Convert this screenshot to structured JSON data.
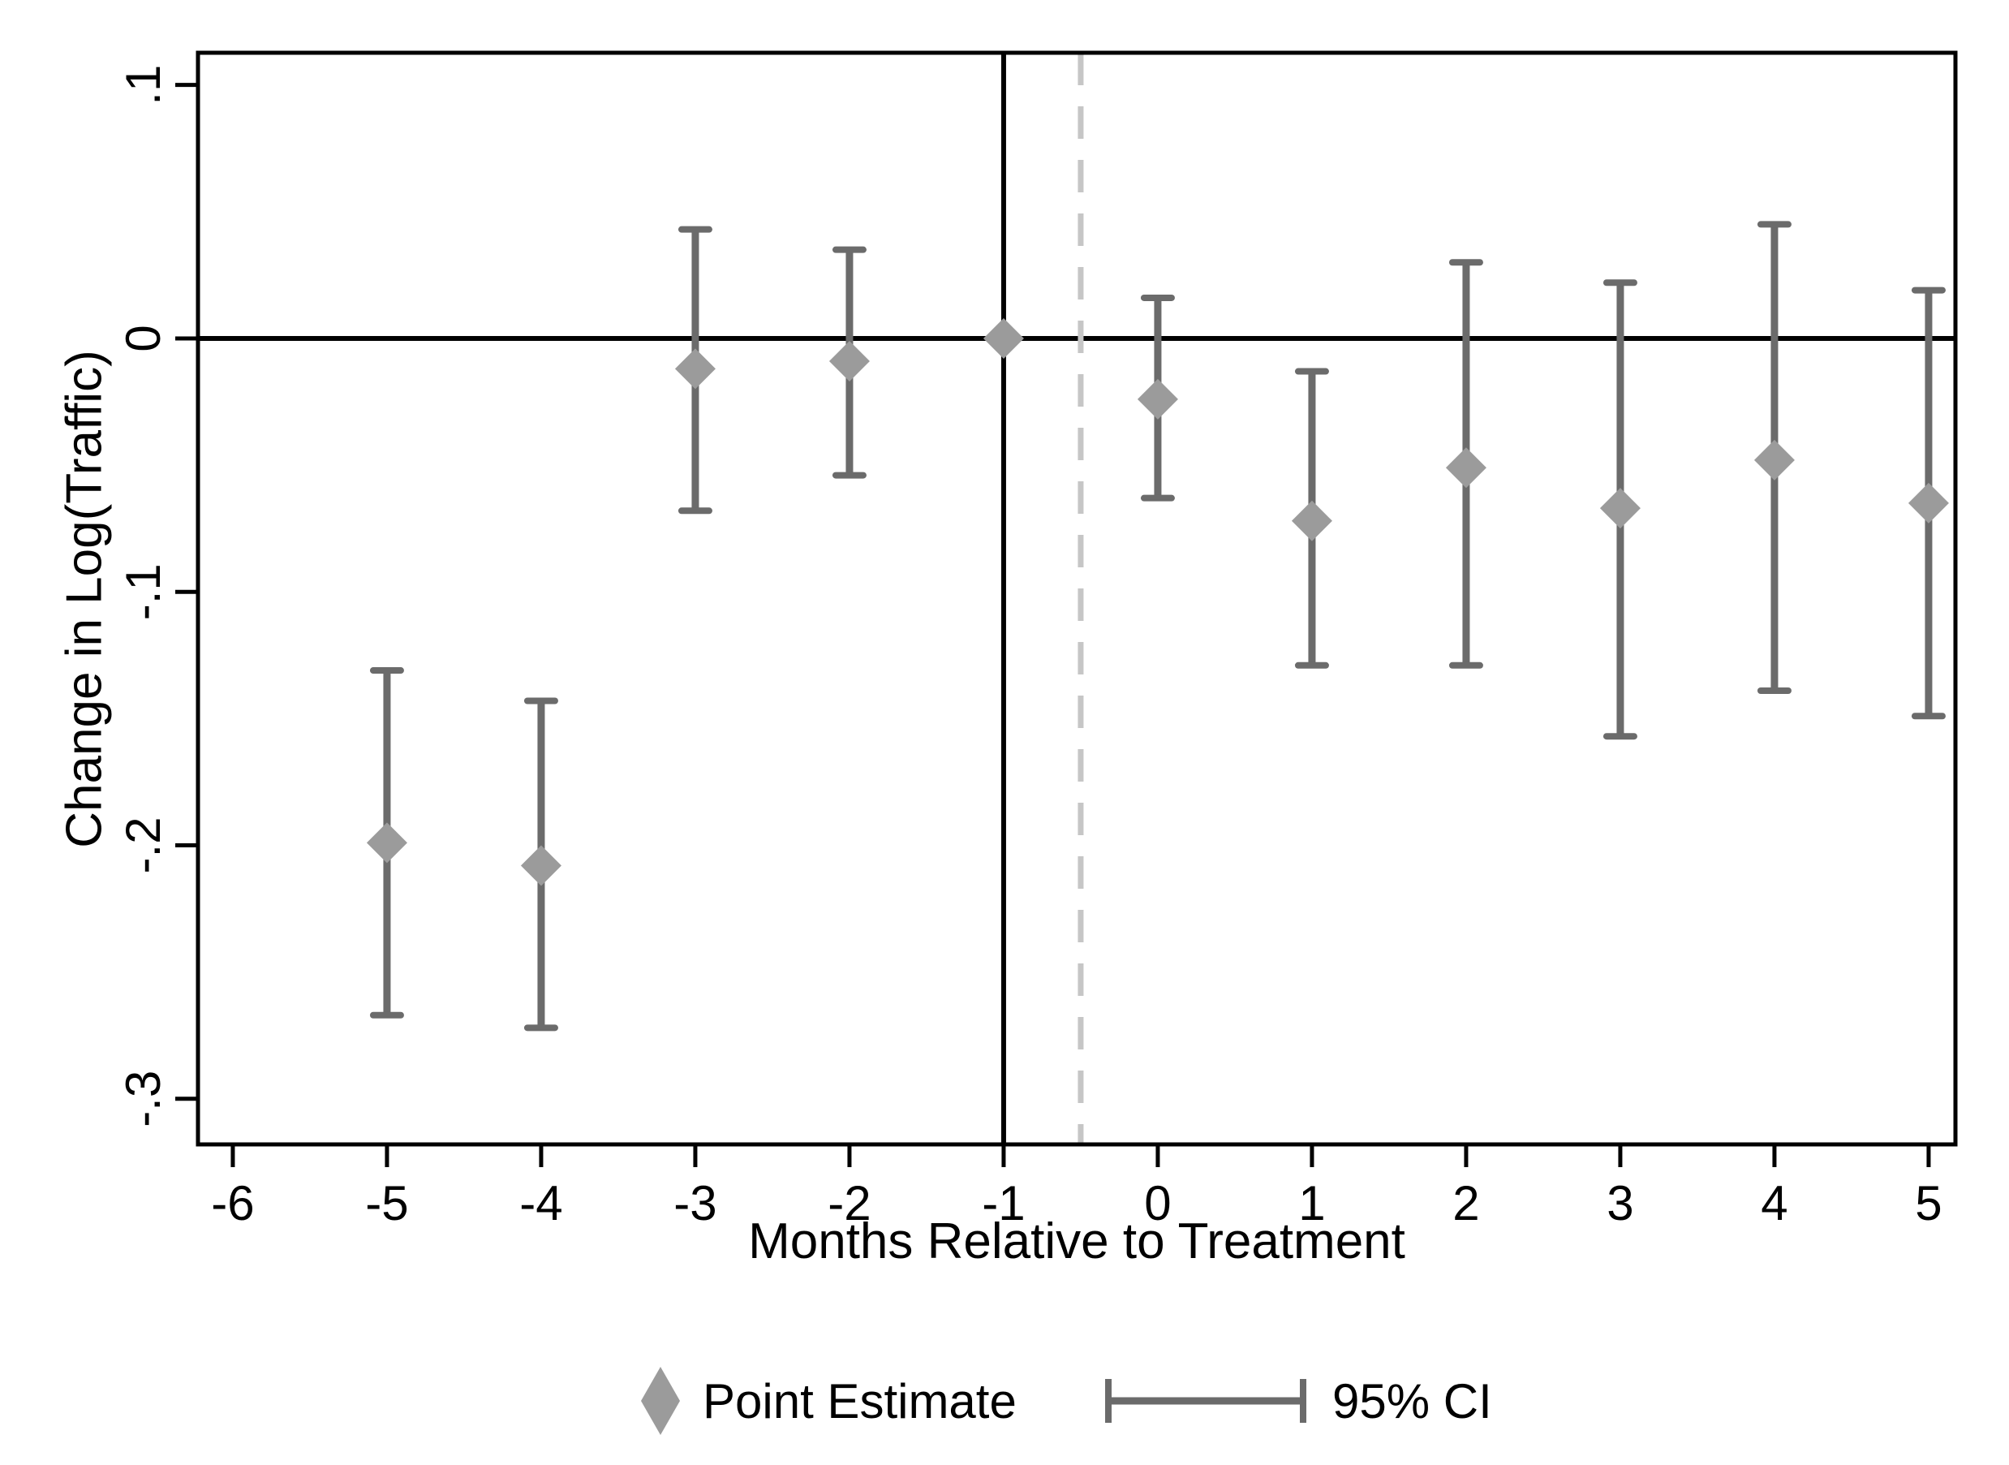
{
  "chart_data": {
    "type": "scatter",
    "xlabel": "Months Relative to Treatment",
    "ylabel": "Change in Log(Traffic)",
    "xlim": [
      -6.226,
      5.174
    ],
    "ylim": [
      -0.318,
      0.1127
    ],
    "grid": false,
    "x_ticks": [
      {
        "value": -6,
        "label": "-6"
      },
      {
        "value": -5,
        "label": "-5"
      },
      {
        "value": -4,
        "label": "-4"
      },
      {
        "value": -3,
        "label": "-3"
      },
      {
        "value": -2,
        "label": "-2"
      },
      {
        "value": -1,
        "label": "-1"
      },
      {
        "value": 0,
        "label": "0"
      },
      {
        "value": 1,
        "label": "1"
      },
      {
        "value": 2,
        "label": "2"
      },
      {
        "value": 3,
        "label": "3"
      },
      {
        "value": 4,
        "label": "4"
      },
      {
        "value": 5,
        "label": "5"
      }
    ],
    "y_ticks": [
      {
        "value": 0.1,
        "label": ".1"
      },
      {
        "value": 0,
        "label": "0"
      },
      {
        "value": -0.1,
        "label": "-.1"
      },
      {
        "value": -0.2,
        "label": "-.2"
      },
      {
        "value": -0.3,
        "label": "-.3"
      }
    ],
    "reference_lines": {
      "zero_hline": 0,
      "treatment_vline": -1,
      "dashed_vline": -0.5
    },
    "series": [
      {
        "name": "Point Estimate",
        "marker": "diamond",
        "points": [
          {
            "x": -5,
            "estimate": -0.199,
            "ci_low": -0.267,
            "ci_high": -0.131
          },
          {
            "x": -4,
            "estimate": -0.208,
            "ci_low": -0.272,
            "ci_high": -0.143
          },
          {
            "x": -3,
            "estimate": -0.012,
            "ci_low": -0.068,
            "ci_high": 0.043
          },
          {
            "x": -2,
            "estimate": -0.009,
            "ci_low": -0.054,
            "ci_high": 0.035
          },
          {
            "x": -1,
            "estimate": 0,
            "ci_low": null,
            "ci_high": null
          },
          {
            "x": 0,
            "estimate": -0.024,
            "ci_low": -0.063,
            "ci_high": 0.016
          },
          {
            "x": 1,
            "estimate": -0.072,
            "ci_low": -0.129,
            "ci_high": -0.013
          },
          {
            "x": 2,
            "estimate": -0.051,
            "ci_low": -0.129,
            "ci_high": 0.03
          },
          {
            "x": 3,
            "estimate": -0.067,
            "ci_low": -0.157,
            "ci_high": 0.022
          },
          {
            "x": 4,
            "estimate": -0.048,
            "ci_low": -0.139,
            "ci_high": 0.045
          },
          {
            "x": 5,
            "estimate": -0.065,
            "ci_low": -0.149,
            "ci_high": 0.019
          }
        ]
      }
    ],
    "legend": {
      "position": "bottom-center",
      "items": [
        {
          "marker": "diamond",
          "label": "Point Estimate"
        },
        {
          "marker": "ci-line",
          "label": "95% CI"
        }
      ]
    },
    "colors": {
      "marker": "#9b9b9b",
      "ci_line": "#6b6b6b",
      "dashed_line": "#c6c6c6",
      "axis": "#000000",
      "background": "#ffffff"
    }
  }
}
